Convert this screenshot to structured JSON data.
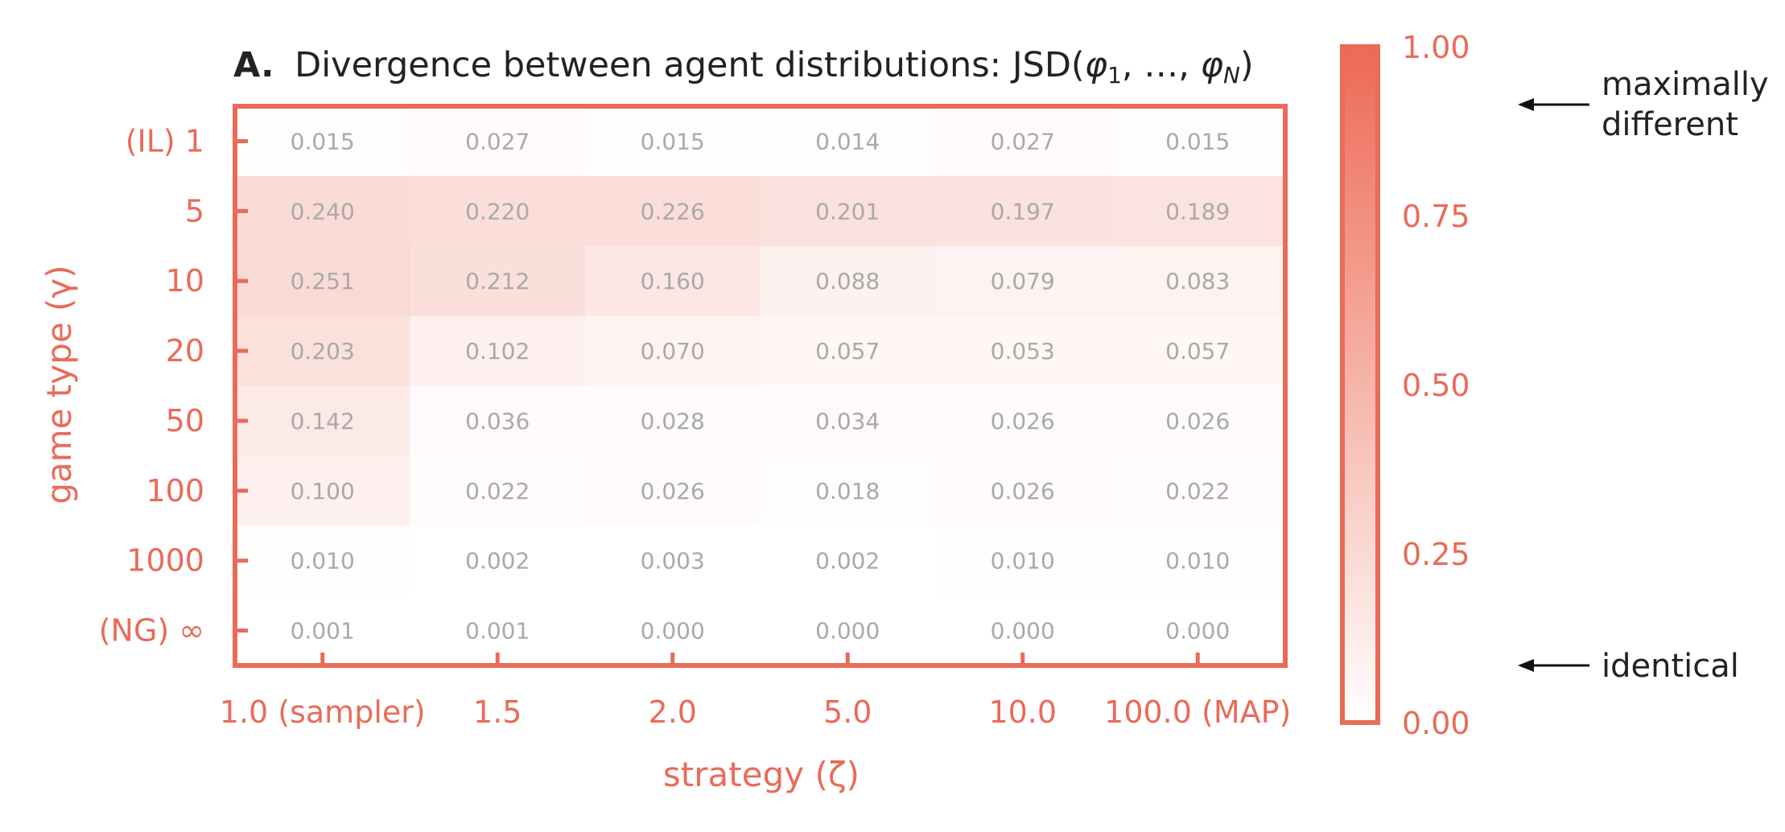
{
  "chart_data": {
    "type": "heatmap",
    "title": {
      "prefix": "A.",
      "main": "Divergence between agent distributions: JSD(",
      "phi1": "φ",
      "sub1": "1",
      "sep": ", …, ",
      "phiN": "φ",
      "subN": "N",
      "close": ")"
    },
    "xlabel": "strategy (ζ)",
    "ylabel": "game type (γ)",
    "x_categories": [
      "1.0 (sampler)",
      "1.5",
      "2.0",
      "5.0",
      "10.0",
      "100.0 (MAP)"
    ],
    "y_categories": [
      "(IL) 1",
      "5",
      "10",
      "20",
      "50",
      "100",
      "1000",
      "(NG) ∞"
    ],
    "values": [
      [
        0.015,
        0.027,
        0.015,
        0.014,
        0.027,
        0.015
      ],
      [
        0.24,
        0.22,
        0.226,
        0.201,
        0.197,
        0.189
      ],
      [
        0.251,
        0.212,
        0.16,
        0.088,
        0.079,
        0.083
      ],
      [
        0.203,
        0.102,
        0.07,
        0.057,
        0.053,
        0.057
      ],
      [
        0.142,
        0.036,
        0.028,
        0.034,
        0.026,
        0.026
      ],
      [
        0.1,
        0.022,
        0.026,
        0.018,
        0.026,
        0.022
      ],
      [
        0.01,
        0.002,
        0.003,
        0.002,
        0.01,
        0.01
      ],
      [
        0.001,
        0.001,
        0.0,
        0.0,
        0.0,
        0.0
      ]
    ],
    "colorbar": {
      "range": [
        0,
        1
      ],
      "ticks": [
        "0.00",
        "0.25",
        "0.50",
        "0.75",
        "1.00"
      ],
      "color_low": "#ffffff",
      "color_high": "#ec6a55"
    },
    "annotations": {
      "top": [
        "maximally",
        "different"
      ],
      "bottom": "identical"
    },
    "colors": {
      "accent": "#e96b58",
      "cell_text": "#a9a9a9",
      "text_dark": "#222222"
    }
  }
}
